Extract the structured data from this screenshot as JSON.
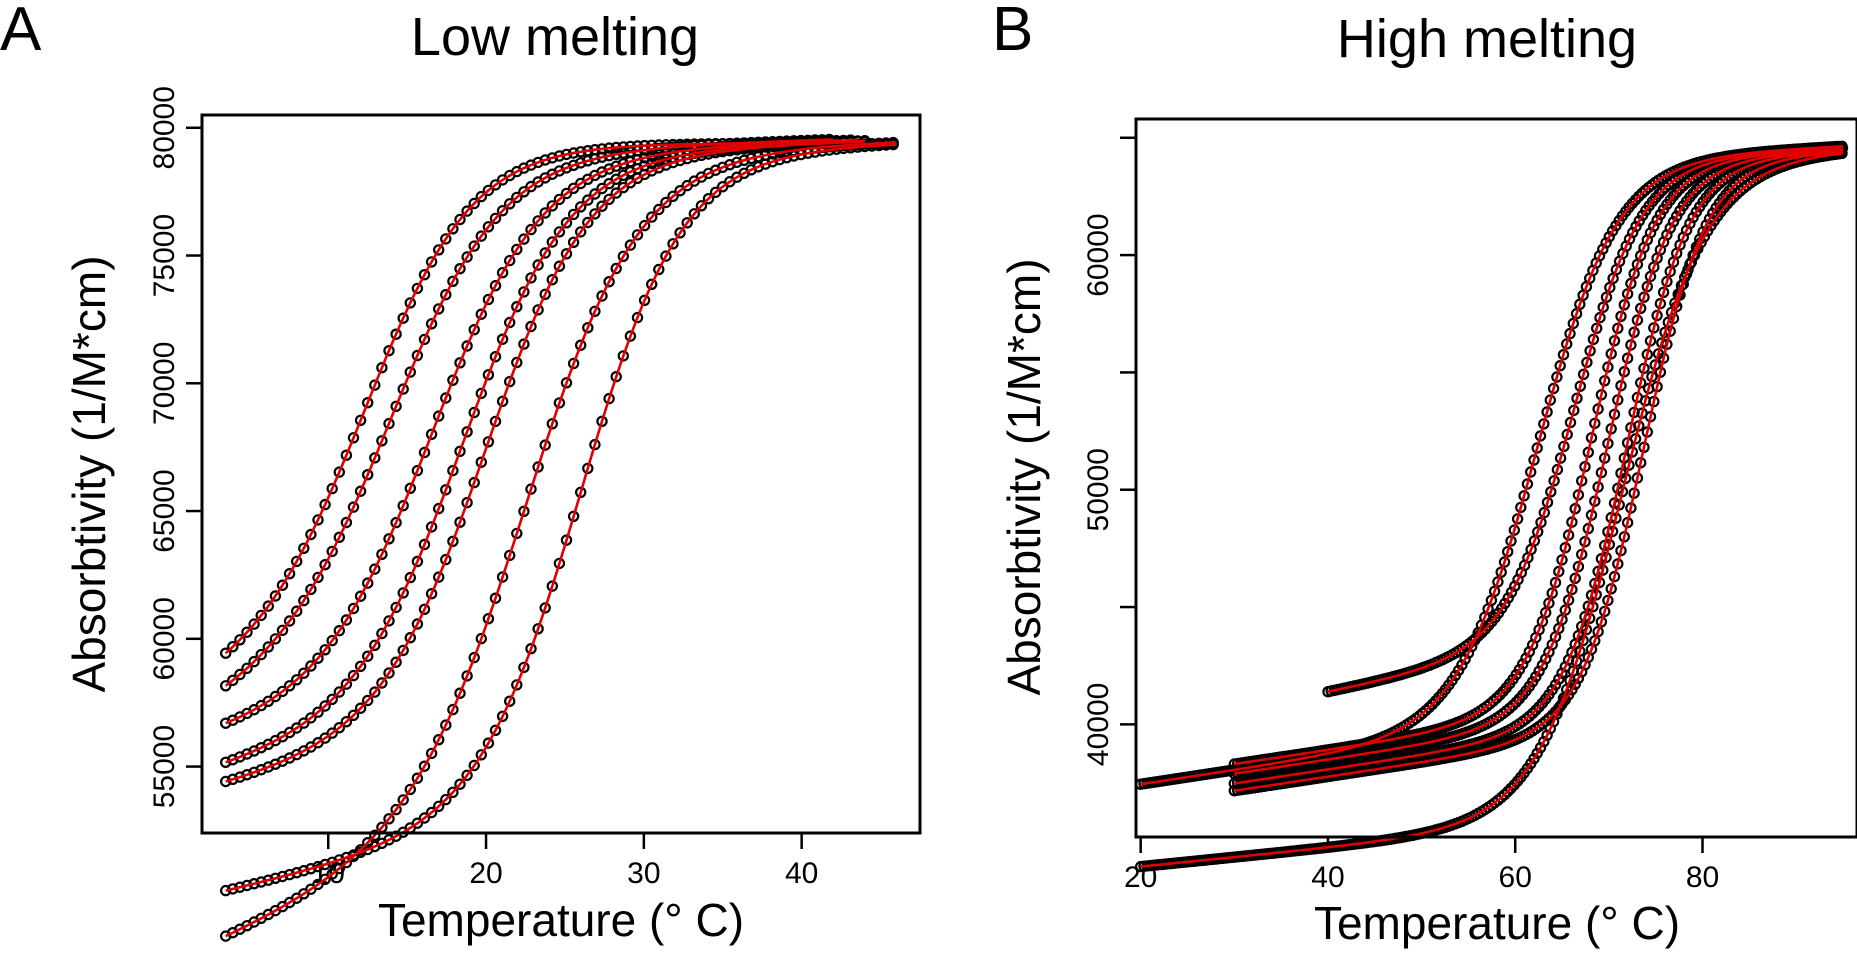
{
  "chart_data": [
    {
      "type": "scatter",
      "panel_letter": "A",
      "title": "Low melting",
      "xlabel": "Temperature (° C)",
      "ylabel": "Absorbtivity (1/M*cm)",
      "xlim": [
        2,
        47.5
      ],
      "ylim": [
        52400,
        80500
      ],
      "xticks": [
        10,
        20,
        30,
        40
      ],
      "yticks": [
        55000,
        60000,
        65000,
        70000,
        75000,
        80000
      ],
      "x_tick_labels": [
        "10",
        "20",
        "30",
        "40"
      ],
      "y_tick_labels": [
        "55000",
        "60000",
        "65000",
        "70000",
        "75000",
        "80000"
      ],
      "point_color": "#000000",
      "fit_color": "#e00000",
      "grid": false,
      "legend": "none",
      "series": [
        {
          "x_range": [
            3.5,
            42
          ],
          "step": 0.45,
          "lower": 60000,
          "upper": 79400,
          "tm": 12.8,
          "width": 3.4,
          "lower_slope": 200,
          "upper_slope": 0
        },
        {
          "x_range": [
            3.5,
            42
          ],
          "step": 0.45,
          "lower": 59800,
          "upper": 79000,
          "tm": 14.5,
          "width": 3.5,
          "lower_slope": 230,
          "upper_slope": 20
        },
        {
          "x_range": [
            3.5,
            43.5
          ],
          "step": 0.45,
          "lower": 57800,
          "upper": 79000,
          "tm": 16.8,
          "width": 3.5,
          "lower_slope": 120,
          "upper_slope": 20
        },
        {
          "x_range": [
            3.5,
            44
          ],
          "step": 0.45,
          "lower": 57200,
          "upper": 79000,
          "tm": 18.8,
          "width": 3.4,
          "lower_slope": 150,
          "upper_slope": 20
        },
        {
          "x_range": [
            3.5,
            44
          ],
          "step": 0.45,
          "lower": 56600,
          "upper": 79000,
          "tm": 20.2,
          "width": 3.3,
          "lower_slope": 140,
          "upper_slope": 20
        },
        {
          "x_range": [
            3.5,
            46
          ],
          "step": 0.45,
          "lower": 53300,
          "upper": 79000,
          "tm": 23.0,
          "width": 3.6,
          "lower_slope": 260,
          "upper_slope": 20
        },
        {
          "x_range": [
            3.5,
            46
          ],
          "step": 0.45,
          "lower": 53300,
          "upper": 79000,
          "tm": 26.2,
          "width": 3.2,
          "lower_slope": 140,
          "upper_slope": 20
        }
      ]
    },
    {
      "type": "scatter",
      "panel_letter": "B",
      "title": "High melting",
      "xlabel": "Temperature (° C)",
      "ylabel": "Absorbtivity (1/M*cm)",
      "xlim": [
        19.5,
        96.5
      ],
      "ylim": [
        35200,
        65800
      ],
      "xticks": [
        20,
        40,
        60,
        80
      ],
      "yticks": [
        40000,
        45000,
        50000,
        55000,
        60000,
        65000
      ],
      "x_tick_labels": [
        "20",
        "40",
        "60",
        "80"
      ],
      "y_tick_labels": [
        "40000",
        "",
        "50000",
        "",
        "60000",
        ""
      ],
      "point_color": "#000000",
      "fit_color": "#e00000",
      "grid": false,
      "legend": "none",
      "series": [
        {
          "x_range": [
            20,
            95
          ],
          "step": 0.35,
          "lower": 40000,
          "upper": 64000,
          "tm": 62.5,
          "width": 4.2,
          "lower_slope": 60,
          "upper_slope": 20
        },
        {
          "x_range": [
            40,
            95
          ],
          "step": 0.35,
          "lower": 43500,
          "upper": 64000,
          "tm": 66.5,
          "width": 3.6,
          "lower_slope": 80,
          "upper_slope": 20
        },
        {
          "x_range": [
            30,
            95
          ],
          "step": 0.35,
          "lower": 40600,
          "upper": 64000,
          "tm": 68.2,
          "width": 3.4,
          "lower_slope": 60,
          "upper_slope": 20
        },
        {
          "x_range": [
            30,
            95
          ],
          "step": 0.35,
          "lower": 40300,
          "upper": 64000,
          "tm": 70.0,
          "width": 3.4,
          "lower_slope": 60,
          "upper_slope": 20
        },
        {
          "x_range": [
            30,
            95
          ],
          "step": 0.35,
          "lower": 40000,
          "upper": 64000,
          "tm": 72.0,
          "width": 3.3,
          "lower_slope": 60,
          "upper_slope": 20
        },
        {
          "x_range": [
            30,
            95
          ],
          "step": 0.35,
          "lower": 39800,
          "upper": 64000,
          "tm": 73.8,
          "width": 3.3,
          "lower_slope": 60,
          "upper_slope": 20
        },
        {
          "x_range": [
            20,
            95
          ],
          "step": 0.35,
          "lower": 36000,
          "upper": 64000,
          "tm": 71.5,
          "width": 4.4,
          "lower_slope": 40,
          "upper_slope": 20
        }
      ]
    }
  ]
}
